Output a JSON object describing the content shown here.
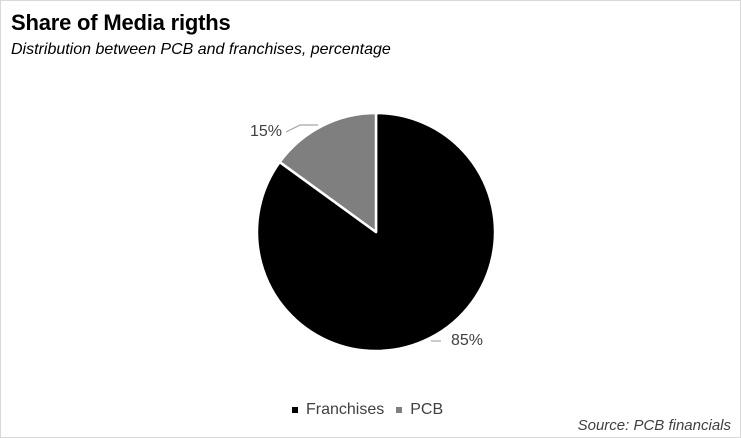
{
  "title": "Share of Media rigths",
  "subtitle": "Distribution between PCB and franchises, percentage",
  "source": "Source: PCB financials",
  "colors": {
    "franchises": "#000000",
    "pcb": "#7f7f7f",
    "label_text": "#404040",
    "leader_line": "#a6a6a6"
  },
  "chart_data": {
    "type": "pie",
    "categories": [
      "Franchises",
      "PCB"
    ],
    "values": [
      85,
      15
    ],
    "data_labels": [
      "85%",
      "15%"
    ],
    "title": "Share of Media rigths",
    "subtitle": "Distribution between PCB and franchises, percentage",
    "legend": {
      "placement": "bottom",
      "entries": [
        "Franchises",
        "PCB"
      ]
    }
  }
}
